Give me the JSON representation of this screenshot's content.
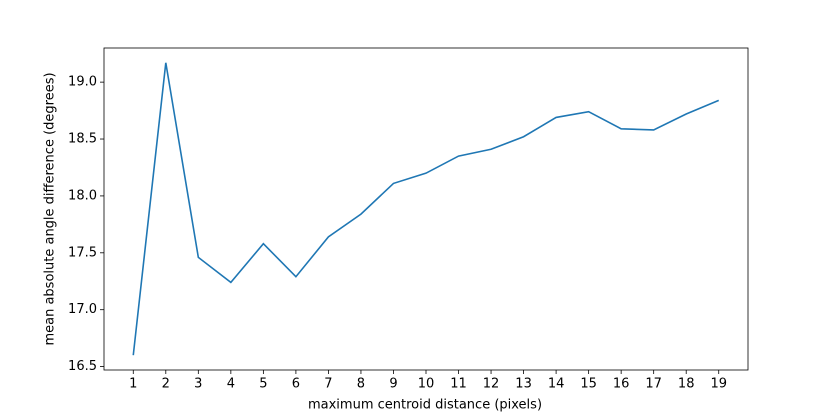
{
  "chart_data": {
    "type": "line",
    "x_label": "maximum centroid distance (pixels)",
    "y_label": "mean absolute angle difference (degrees)",
    "x": [
      1,
      2,
      3,
      4,
      5,
      6,
      7,
      8,
      9,
      10,
      11,
      12,
      13,
      14,
      15,
      16,
      17,
      18,
      19
    ],
    "series": [
      {
        "color": "#1f77b4",
        "values": [
          16.6,
          19.17,
          17.46,
          17.24,
          17.58,
          17.29,
          17.64,
          17.84,
          18.11,
          18.2,
          18.35,
          18.41,
          18.52,
          18.69,
          18.74,
          18.59,
          18.58,
          18.72,
          18.84
        ]
      }
    ],
    "xlim": [
      0.1,
      19.9
    ],
    "ylim": [
      16.47,
      19.3
    ],
    "xticks": [
      1,
      2,
      3,
      4,
      5,
      6,
      7,
      8,
      9,
      10,
      11,
      12,
      13,
      14,
      15,
      16,
      17,
      18,
      19
    ],
    "yticks": [
      16.5,
      {
        "value": 17,
        "label": "17.0"
      },
      17.5,
      {
        "value": 18,
        "label": "18.0"
      },
      18.5,
      {
        "value": 19,
        "label": "19.0"
      }
    ]
  }
}
